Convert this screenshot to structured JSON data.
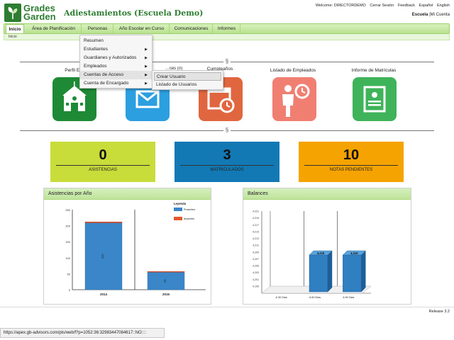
{
  "header": {
    "logo_line1": "Grades",
    "logo_line2": "Garden",
    "app_title": "Adiestamientos (Escuela Demo)",
    "welcome_label": "Welcome: DIRECTORDEMO",
    "links": [
      "Cerrar Sesión",
      "Feedback",
      "Español",
      "English"
    ],
    "school_label": "Escuela",
    "account_label": "|Mi Cuenta"
  },
  "nav": {
    "tabs": [
      "Inicio",
      "Área de Planificación",
      "Personas",
      "Año Escolar en Curso",
      "Comunicaciones",
      "Informes"
    ],
    "breadcrumb": "Inicio"
  },
  "menu": {
    "items": [
      {
        "label": "Resumen",
        "has_sub": false
      },
      {
        "label": "Estudiantes",
        "has_sub": true
      },
      {
        "label": "Guardianes y Autorizados",
        "has_sub": true
      },
      {
        "label": "Empleados",
        "has_sub": true
      },
      {
        "label": "Cuentas de Acceso",
        "has_sub": true
      },
      {
        "label": "Cuenta de Encargado",
        "has_sub": true
      }
    ],
    "submenu": [
      "Crear Usuario",
      "Listado de Usuarios"
    ]
  },
  "divider_symbol": "§",
  "tiles": [
    {
      "label": "Perfil Esc",
      "color": "#1e8a35"
    },
    {
      "label": "…ces (0)",
      "color": "#2c9fe0"
    },
    {
      "label": "Cumpleaños",
      "color": "#e0663f"
    },
    {
      "label": "Listado de Empleados",
      "color": "#f07f72"
    },
    {
      "label": "Informe de Matrículas",
      "color": "#3fb35a"
    }
  ],
  "stats": [
    {
      "value": "0",
      "label": "ASISTENCIAS",
      "color": "#c8dc3a"
    },
    {
      "value": "3",
      "label": "MATRICULADOS",
      "color": "#1279b5"
    },
    {
      "value": "10",
      "label": "NOTAS PENDIENTES",
      "color": "#f5a300"
    }
  ],
  "panels": {
    "left_title": "Asistencias por Año",
    "right_title": "Balances"
  },
  "chart_data": [
    {
      "type": "bar",
      "title": "",
      "categories": [
        "2014",
        "2016"
      ],
      "series": [
        {
          "name": "Presentes",
          "values": [
            209,
            55
          ],
          "color": "#3a86c8"
        },
        {
          "name": "Ausentes",
          "values": [
            3,
            2
          ],
          "color": "#e4572e"
        }
      ],
      "bar_labels": [
        "209",
        "55"
      ],
      "legend_title": "Leyenda",
      "ylim": [
        0,
        250
      ],
      "yticks": [
        "250",
        "200",
        "150",
        "100",
        "50",
        "0"
      ],
      "legend": "top-right"
    },
    {
      "type": "bar",
      "title": "",
      "categories": [
        "A 30 Dias",
        "A 60 Dias",
        "A 90 Dias"
      ],
      "values": [
        0,
        4210,
        4210
      ],
      "value_labels": [
        "",
        "4,210",
        "4,210"
      ],
      "yticks": [
        "4,221",
        "4,219",
        "4,217",
        "4,215",
        "4,213",
        "4,211",
        "4,209",
        "4,207",
        "4,205",
        "4,203",
        "4,201",
        "4,199"
      ]
    }
  ],
  "release": "Release 3.2",
  "status_url": "https://apex.gb-advisors.com/pls/web/f?p=1052:36:32983447084617::NO::::"
}
